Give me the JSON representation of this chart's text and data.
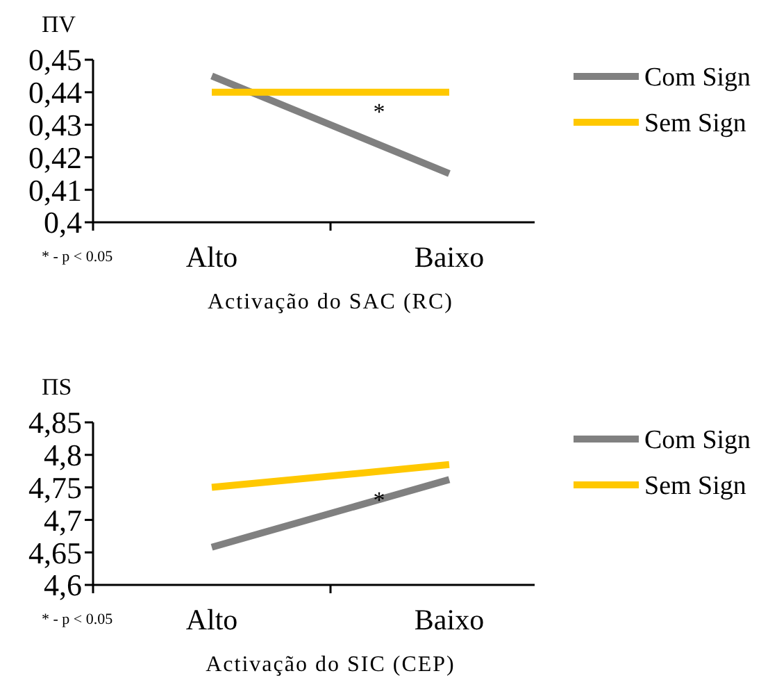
{
  "chart_data": [
    {
      "type": "line",
      "ylabel": "ΠV",
      "xlabel": "Activação do SAC (RC)",
      "categories": [
        "Alto",
        "Baixo"
      ],
      "series": [
        {
          "name": "Com Sign",
          "color": "#808080",
          "values": [
            0.445,
            0.415
          ]
        },
        {
          "name": "Sem Sign",
          "color": "#ffc800",
          "values": [
            0.44,
            0.44
          ]
        }
      ],
      "ylim": [
        0.4,
        0.45
      ],
      "yticks": [
        {
          "value": 0.4,
          "label": "0,4"
        },
        {
          "value": 0.41,
          "label": "0,41"
        },
        {
          "value": 0.42,
          "label": "0,42"
        },
        {
          "value": 0.43,
          "label": "0,43"
        },
        {
          "value": 0.44,
          "label": "0,44"
        },
        {
          "value": 0.45,
          "label": "0,45"
        }
      ],
      "legend": "right",
      "annotations": [
        "*",
        "* - p < 0.05"
      ]
    },
    {
      "type": "line",
      "ylabel": "ΠS",
      "xlabel": "Activação do SIC (CEP)",
      "categories": [
        "Alto",
        "Baixo"
      ],
      "series": [
        {
          "name": "Com Sign",
          "color": "#808080",
          "values": [
            4.658,
            4.762
          ]
        },
        {
          "name": "Sem Sign",
          "color": "#ffc800",
          "values": [
            4.75,
            4.785
          ]
        }
      ],
      "ylim": [
        4.6,
        4.85
      ],
      "yticks": [
        {
          "value": 4.6,
          "label": "4,6"
        },
        {
          "value": 4.65,
          "label": "4,65"
        },
        {
          "value": 4.7,
          "label": "4,7"
        },
        {
          "value": 4.75,
          "label": "4,75"
        },
        {
          "value": 4.8,
          "label": "4,8"
        },
        {
          "value": 4.85,
          "label": "4,85"
        }
      ],
      "legend": "right",
      "annotations": [
        "*",
        "* - p < 0.05"
      ]
    }
  ]
}
